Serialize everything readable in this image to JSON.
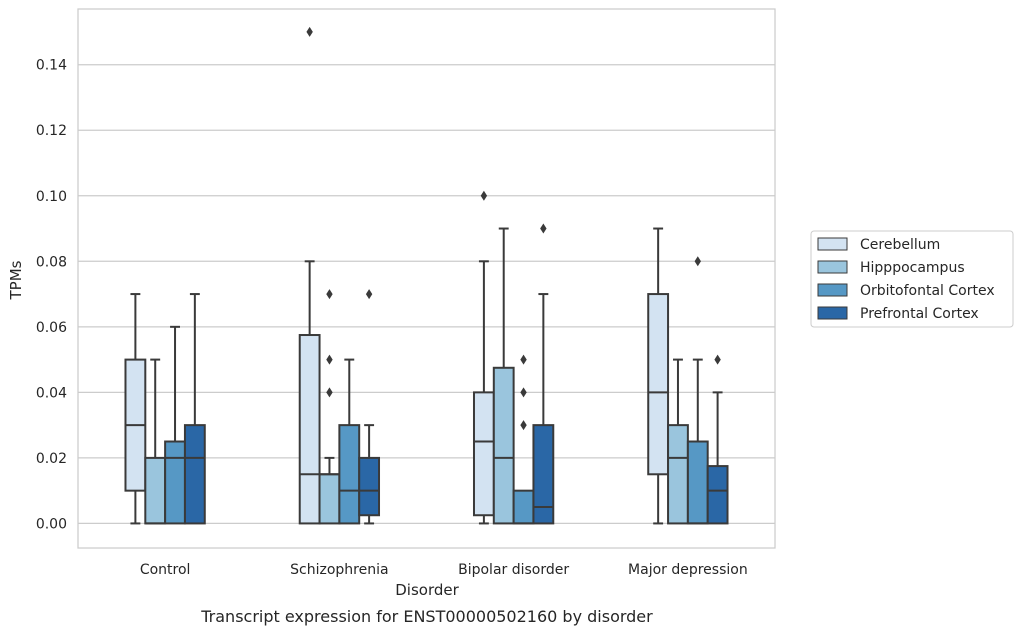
{
  "chart_data": {
    "type": "box",
    "title": "",
    "caption": "Transcript expression for ENST00000502160 by disorder",
    "xlabel": "Disorder",
    "ylabel": "TPMs",
    "ylim": [
      -0.0075,
      0.157
    ],
    "yticks": [
      0.0,
      0.02,
      0.04,
      0.06,
      0.08,
      0.1,
      0.12,
      0.14
    ],
    "ytick_labels": [
      "0.00",
      "0.02",
      "0.04",
      "0.06",
      "0.08",
      "0.10",
      "0.12",
      "0.14"
    ],
    "grid": "horizontal",
    "legend_position": "right",
    "categories": [
      "Control",
      "Schizophrenia",
      "Bipolar disorder",
      "Major depression"
    ],
    "series": [
      {
        "name": "Cerebellum",
        "color": "#d3e3f2",
        "boxes": [
          {
            "whislo": 0.0,
            "q1": 0.01,
            "med": 0.03,
            "q3": 0.05,
            "whishi": 0.07,
            "fliers": []
          },
          {
            "whislo": 0.0,
            "q1": 0.0,
            "med": 0.015,
            "q3": 0.0575,
            "whishi": 0.08,
            "fliers": [
              0.15
            ]
          },
          {
            "whislo": 0.0,
            "q1": 0.0025,
            "med": 0.025,
            "q3": 0.04,
            "whishi": 0.08,
            "fliers": [
              0.1
            ]
          },
          {
            "whislo": 0.0,
            "q1": 0.015,
            "med": 0.04,
            "q3": 0.07,
            "whishi": 0.09,
            "fliers": []
          }
        ]
      },
      {
        "name": "Hipppocampus",
        "color": "#9ac5dd",
        "boxes": [
          {
            "whislo": 0.0,
            "q1": 0.0,
            "med": 0.0,
            "q3": 0.02,
            "whishi": 0.05,
            "fliers": []
          },
          {
            "whislo": 0.0,
            "q1": 0.0,
            "med": 0.015,
            "q3": 0.015,
            "whishi": 0.02,
            "fliers": [
              0.04,
              0.05,
              0.07
            ]
          },
          {
            "whislo": 0.0,
            "q1": 0.0,
            "med": 0.02,
            "q3": 0.0475,
            "whishi": 0.09,
            "fliers": []
          },
          {
            "whislo": 0.0,
            "q1": 0.0,
            "med": 0.02,
            "q3": 0.03,
            "whishi": 0.05,
            "fliers": []
          }
        ]
      },
      {
        "name": "Orbitofontal Cortex",
        "color": "#5698c5",
        "boxes": [
          {
            "whislo": 0.0,
            "q1": 0.0,
            "med": 0.02,
            "q3": 0.025,
            "whishi": 0.06,
            "fliers": []
          },
          {
            "whislo": 0.0,
            "q1": 0.0,
            "med": 0.01,
            "q3": 0.03,
            "whishi": 0.05,
            "fliers": []
          },
          {
            "whislo": 0.0,
            "q1": 0.0,
            "med": 0.0,
            "q3": 0.01,
            "whishi": 0.01,
            "fliers": [
              0.03,
              0.04,
              0.05
            ]
          },
          {
            "whislo": 0.0,
            "q1": 0.0,
            "med": 0.0,
            "q3": 0.025,
            "whishi": 0.05,
            "fliers": [
              0.08
            ]
          }
        ]
      },
      {
        "name": "Prefrontal Cortex",
        "color": "#2a67a6",
        "boxes": [
          {
            "whislo": 0.0,
            "q1": 0.0,
            "med": 0.02,
            "q3": 0.03,
            "whishi": 0.07,
            "fliers": []
          },
          {
            "whislo": 0.0,
            "q1": 0.0025,
            "med": 0.01,
            "q3": 0.02,
            "whishi": 0.03,
            "fliers": [
              0.07
            ]
          },
          {
            "whislo": 0.0,
            "q1": 0.0,
            "med": 0.005,
            "q3": 0.03,
            "whishi": 0.07,
            "fliers": [
              0.09
            ]
          },
          {
            "whislo": 0.0,
            "q1": 0.0,
            "med": 0.01,
            "q3": 0.0175,
            "whishi": 0.04,
            "fliers": [
              0.05
            ]
          }
        ]
      }
    ]
  }
}
